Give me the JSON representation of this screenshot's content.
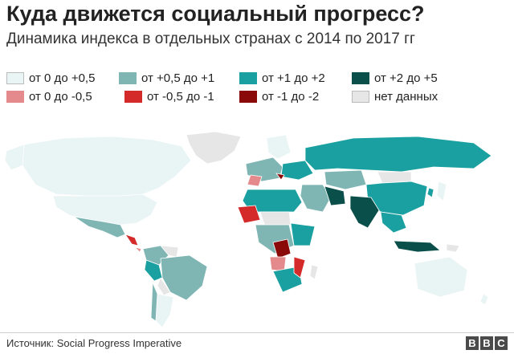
{
  "title": "Куда движется социальный прогресс?",
  "subtitle": "Динамика индекса в отдельных странах с 2014 по 2017 гг",
  "legend": [
    {
      "label": "от 0 до +0,5",
      "color": "#e9f4f4"
    },
    {
      "label": "от +0,5 до +1",
      "color": "#7fb6b4"
    },
    {
      "label": "от +1 до +2",
      "color": "#1aa0a0"
    },
    {
      "label": "от +2 до +5",
      "color": "#0a4f4a"
    },
    {
      "label": "от 0 до -0,5",
      "color": "#e58a8c"
    },
    {
      "label": "от -0,5 до -1",
      "color": "#d42a2a"
    },
    {
      "label": "от -1 до -2",
      "color": "#8a0a0a"
    },
    {
      "label": "нет данных",
      "color": "#e6e6e6"
    }
  ],
  "source": "Источник: Social Progress Imperative",
  "logo": [
    "B",
    "B",
    "C"
  ],
  "map": {
    "ocean": "#ffffff",
    "border": "#ffffff"
  }
}
